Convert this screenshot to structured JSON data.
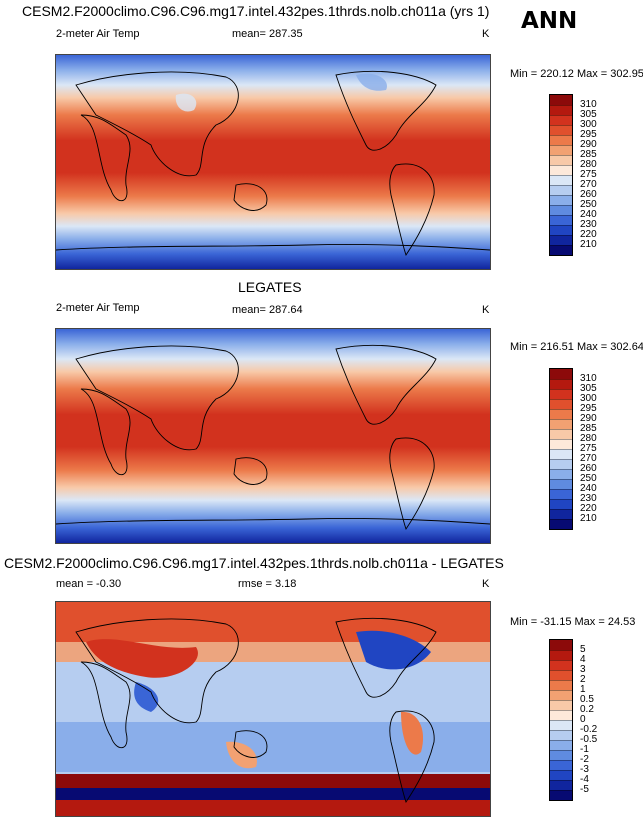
{
  "header": {
    "title": "CESM2.F2000climo.C96.C96.mg17.intel.432pes.1thrds.nolb.ch011a (yrs 1)",
    "season": "ANN"
  },
  "panels": [
    {
      "id": "model",
      "title": "",
      "variable": "2-meter Air Temp",
      "stat": "mean= 287.35",
      "units": "K",
      "minmax": "Min = 220.12 Max = 302.95",
      "field": "temperature"
    },
    {
      "id": "obs",
      "title": "LEGATES",
      "variable": "2-meter Air Temp",
      "stat": "mean= 287.64",
      "units": "K",
      "minmax": "Min = 216.51 Max = 302.64",
      "field": "temperature"
    },
    {
      "id": "diff",
      "title": "CESM2.F2000climo.C96.C96.mg17.intel.432pes.1thrds.nolb.ch011a - LEGATES",
      "stat": "mean =  -0.30",
      "stat2": "rmse =   3.18",
      "units": "K",
      "minmax": "Min = -31.15 Max =  24.53",
      "field": "difference"
    }
  ],
  "colorbars": {
    "temperature": {
      "labels": [
        "310",
        "305",
        "300",
        "295",
        "290",
        "285",
        "280",
        "275",
        "270",
        "260",
        "250",
        "240",
        "230",
        "220",
        "210"
      ],
      "colors": [
        "#8c0a0a",
        "#b4190f",
        "#d2321e",
        "#e0502d",
        "#ec7a4a",
        "#f2a172",
        "#f8c9a8",
        "#fde9da",
        "#dbe7f6",
        "#b6cdf0",
        "#8aaeea",
        "#5f8be0",
        "#3a65d6",
        "#2045c2",
        "#10259e",
        "#070a72"
      ]
    },
    "difference": {
      "labels": [
        "5",
        "4",
        "3",
        "2",
        "1",
        "0.5",
        "0.2",
        "0",
        "-0.2",
        "-0.5",
        "-1",
        "-2",
        "-3",
        "-4",
        "-5"
      ],
      "colors": [
        "#8c0a0a",
        "#b4190f",
        "#d2321e",
        "#e0502d",
        "#ec7a4a",
        "#f2a172",
        "#f8c9a8",
        "#fde9da",
        "#dbe7f6",
        "#b6cdf0",
        "#8aaeea",
        "#5f8be0",
        "#3a65d6",
        "#2045c2",
        "#10259e",
        "#070a72"
      ]
    }
  }
}
